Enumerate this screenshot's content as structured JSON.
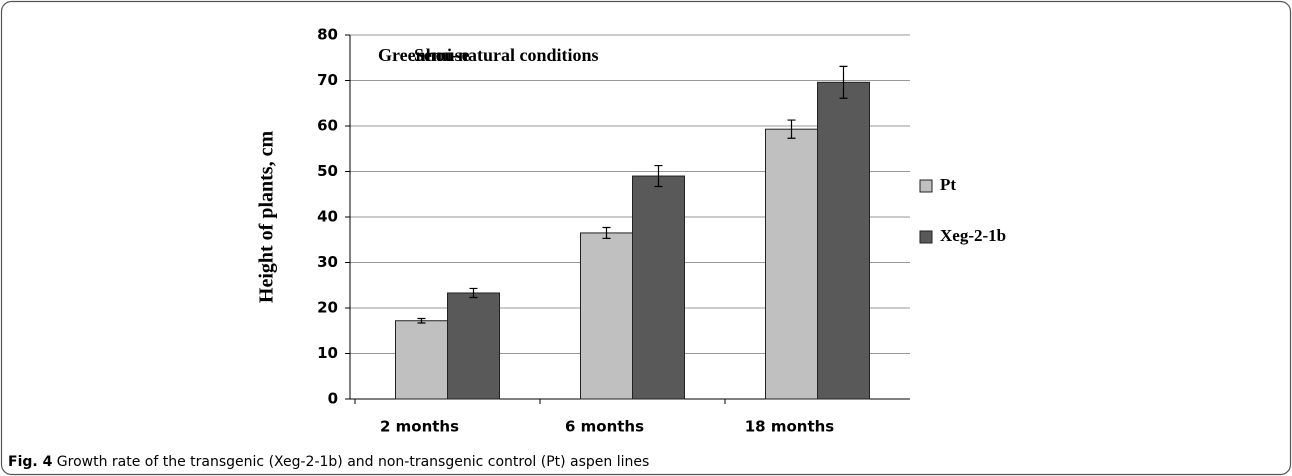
{
  "chart_data": {
    "type": "bar",
    "ylabel": "Height of plants, cm",
    "annotations": [
      "Greenhouse",
      "Semi-natural conditions"
    ],
    "categories": [
      "2 months",
      "6 months",
      "18 months"
    ],
    "series": [
      {
        "name": "Pt",
        "color": "#c0c0c0",
        "values": [
          17.2,
          36.5,
          59.3
        ],
        "errors": [
          0.5,
          1.2,
          2.0
        ]
      },
      {
        "name": "Xeg-2-1b",
        "color": "#595959",
        "values": [
          23.3,
          49.0,
          69.6
        ],
        "errors": [
          1.0,
          2.3,
          3.5
        ]
      }
    ],
    "ylim": [
      0,
      80
    ],
    "yticks": [
      0,
      10,
      20,
      30,
      40,
      50,
      60,
      70,
      80
    ],
    "grid": true,
    "legend": "right"
  },
  "caption": {
    "label": "Fig. 4",
    "text": "Growth rate of the transgenic (Xeg-2-1b) and non-transgenic control (Pt) aspen lines"
  }
}
